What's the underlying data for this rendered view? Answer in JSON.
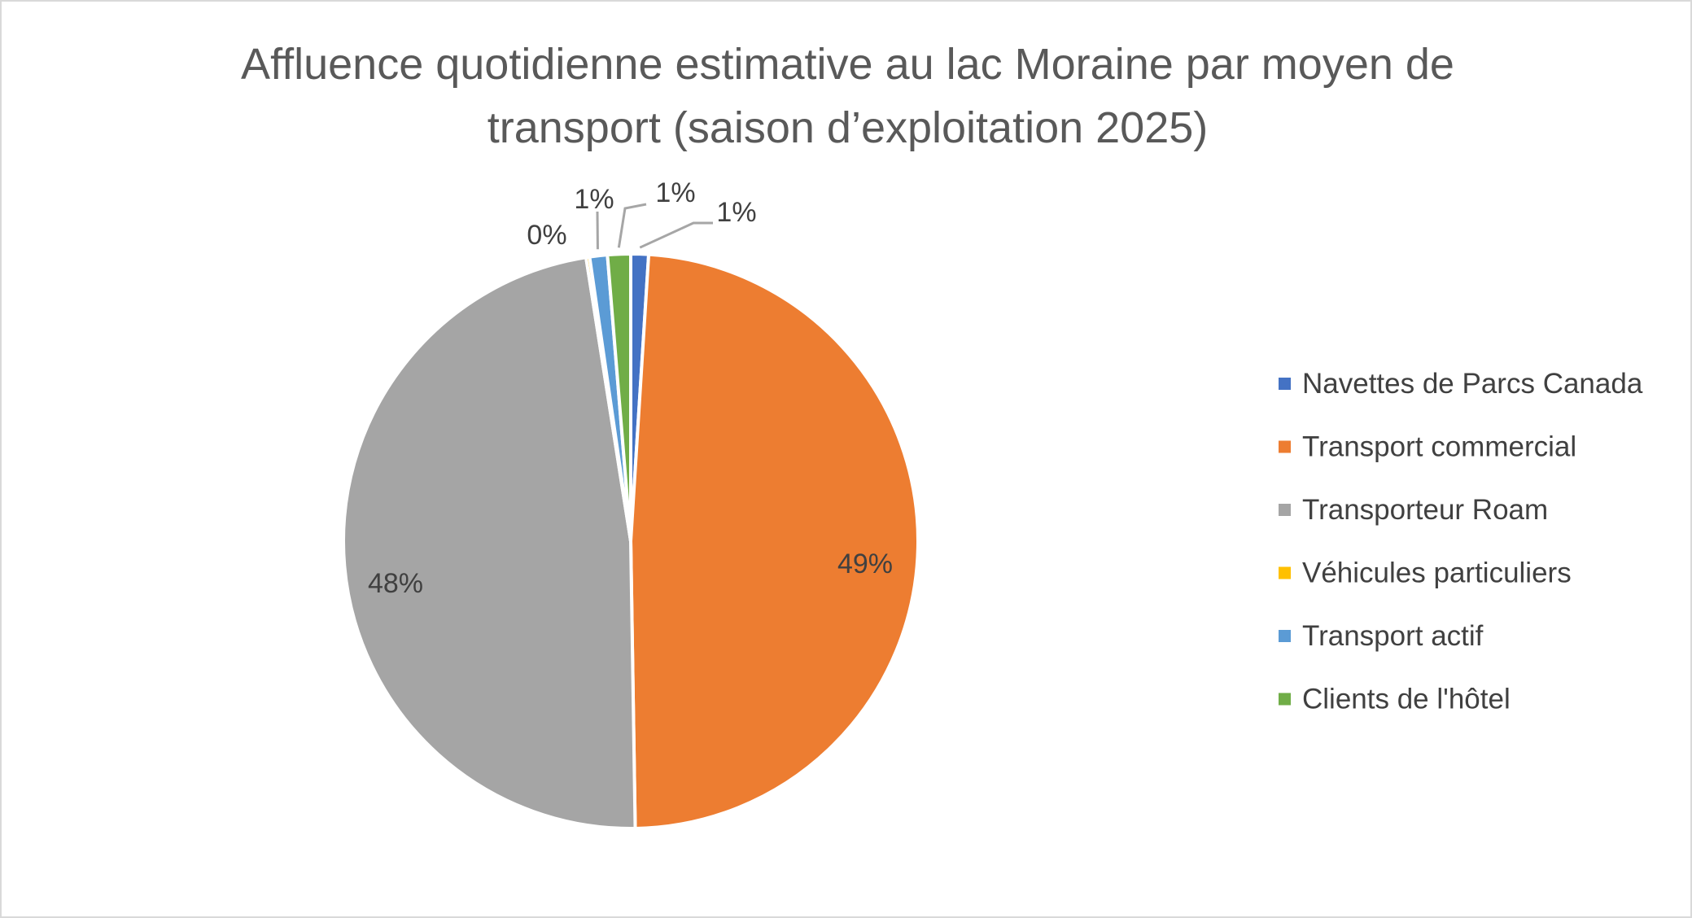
{
  "chart_data": {
    "type": "pie",
    "title": "Affluence quotidienne estimative au lac Moraine par moyen de transport (saison d’exploitation 2025)",
    "title_lines": [
      "Affluence quotidienne estimative au lac Moraine par moyen de",
      "transport (saison d’exploitation 2025)"
    ],
    "categories": [
      "Navettes de Parcs Canada",
      "Transport commercial",
      "Transporteur Roam",
      "Véhicules particuliers",
      "Transport actif",
      "Clients de l'hôtel"
    ],
    "values": [
      1,
      49,
      48,
      0.2,
      1,
      1.3
    ],
    "data_labels": [
      "1%",
      "49%",
      "48%",
      "0%",
      "1%",
      "1%"
    ],
    "colors": [
      "#4472C4",
      "#ED7D31",
      "#A5A5A5",
      "#FFC000",
      "#5B9BD5",
      "#70AD47"
    ],
    "legend_position": "right",
    "start_angle": "top, clockwise"
  }
}
